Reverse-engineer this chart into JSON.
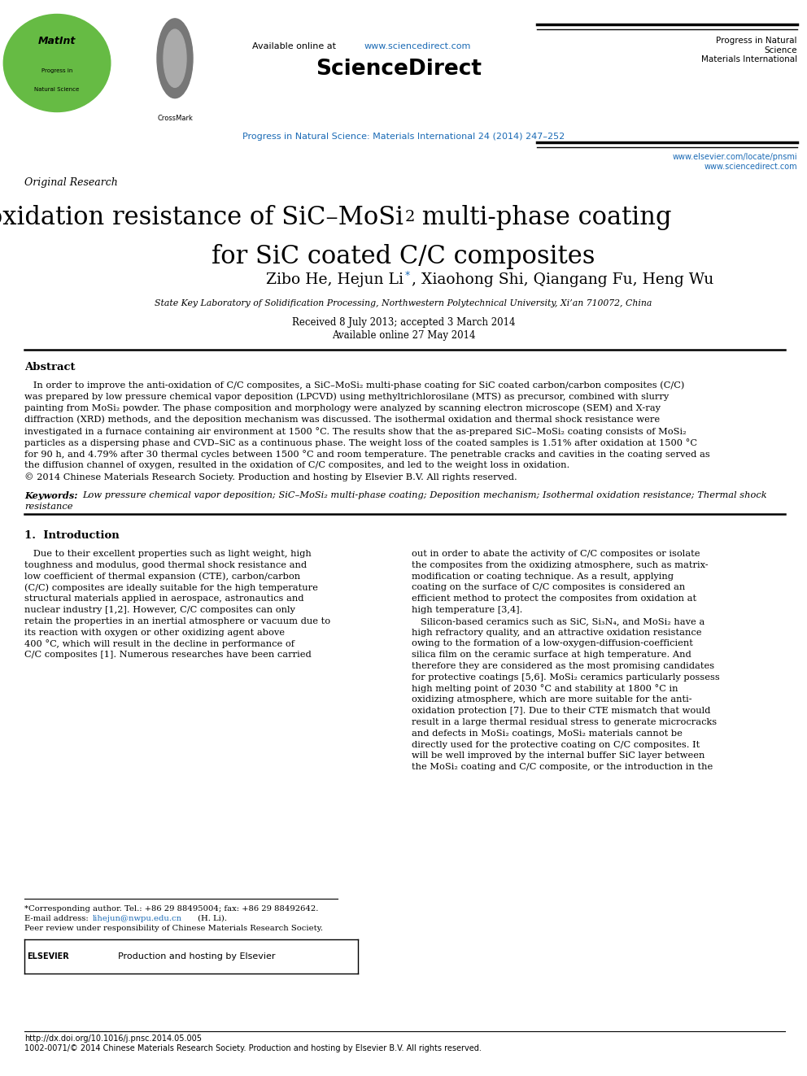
{
  "page_width": 9.92,
  "page_height": 13.23,
  "dpi": 100,
  "bg_color": "#ffffff",
  "color_link": "#1a6ab5",
  "color_black": "#000000",
  "header_available": "Available online at ",
  "header_url": "www.sciencedirect.com",
  "header_sciencedirect": "ScienceDirect",
  "header_journal_right": "Progress in Natural\nScience\nMaterials International",
  "header_journal_link": "Progress in Natural Science: Materials International 24 (2014) 247–252",
  "header_elsevier_url1": "www.elsevier.com/locate/pnsmi",
  "header_elsevier_url2": "www.sciencedirect.com",
  "article_type": "Original Research",
  "title_part1": "Microstructure and oxidation resistance of SiC–MoSi",
  "title_sub": "2",
  "title_part2": " multi-phase coating",
  "title_line2": "for SiC coated C/C composites",
  "authors_part1": "Zibo He, Hejun Li",
  "authors_star": "*",
  "authors_part2": ", Xiaohong Shi, Qiangang Fu, Heng Wu",
  "affiliation": "State Key Laboratory of Solidification Processing, Northwestern Polytechnical University, Xi’an 710072, China",
  "received": "Received 8 July 2013; accepted 3 March 2014",
  "available_online": "Available online 27 May 2014",
  "abstract_title": "Abstract",
  "abstract_body": "   In order to improve the anti-oxidation of C/C composites, a SiC–MoSi₂ multi-phase coating for SiC coated carbon/carbon composites (C/C) was prepared by low pressure chemical vapor deposition (LPCVD) using methyltrichlorosilane (MTS) as precursor, combined with slurry painting from MoSi₂ powder. The phase composition and morphology were analyzed by scanning electron microscope (SEM) and X-ray diffraction (XRD) methods, and the deposition mechanism was discussed. The isothermal oxidation and thermal shock resistance were investigated in a furnace containing air environment at 1500 °C. The results show that the as-prepared SiC–MoSi₂ coating consists of MoSi₂ particles as a dispersing phase and CVD–SiC as a continuous phase. The weight loss of the coated samples is 1.51% after oxidation at 1500 °C for 90 h, and 4.79% after 30 thermal cycles between 1500 °C and room temperature. The penetrable cracks and cavities in the coating served as the diffusion channel of oxygen, resulted in the oxidation of C/C composites, and led to the weight loss in oxidation.",
  "abstract_copyright": "© 2014 Chinese Materials Research Society. Production and hosting by Elsevier B.V. All rights reserved.",
  "keywords_label": "Keywords:",
  "keywords_body": " Low pressure chemical vapor deposition; SiC–MoSi₂ multi-phase coating; Deposition mechanism; Isothermal oxidation resistance; Thermal shock resistance",
  "section1_title": "1.  Introduction",
  "intro_left_lines": [
    "   Due to their excellent properties such as light weight, high",
    "toughness and modulus, good thermal shock resistance and",
    "low coefficient of thermal expansion (CTE), carbon/carbon",
    "(C/C) composites are ideally suitable for the high temperature",
    "structural materials applied in aerospace, astronautics and",
    "nuclear industry [1,2]. However, C/C composites can only",
    "retain the properties in an inertial atmosphere or vacuum due to",
    "its reaction with oxygen or other oxidizing agent above",
    "400 °C, which will result in the decline in performance of",
    "C/C composites [1]. Numerous researches have been carried"
  ],
  "intro_right_lines": [
    "out in order to abate the activity of C/C composites or isolate",
    "the composites from the oxidizing atmosphere, such as matrix-",
    "modification or coating technique. As a result, applying",
    "coating on the surface of C/C composites is considered an",
    "efficient method to protect the composites from oxidation at",
    "high temperature [3,4].",
    "   Silicon-based ceramics such as SiC, Si₃N₄, and MoSi₂ have a",
    "high refractory quality, and an attractive oxidation resistance",
    "owing to the formation of a low-oxygen-diffusion-coefficient",
    "silica film on the ceramic surface at high temperature. And",
    "therefore they are considered as the most promising candidates",
    "for protective coatings [5,6]. MoSi₂ ceramics particularly possess",
    "high melting point of 2030 °C and stability at 1800 °C in",
    "oxidizing atmosphere, which are more suitable for the anti-",
    "oxidation protection [7]. Due to their CTE mismatch that would",
    "result in a large thermal residual stress to generate microcracks",
    "and defects in MoSi₂ coatings, MoSi₂ materials cannot be",
    "directly used for the protective coating on C/C composites. It",
    "will be well improved by the internal buffer SiC layer between",
    "the MoSi₂ coating and C/C composite, or the introduction in the"
  ],
  "footnote_corr": "*Corresponding author. Tel.: +86 29 88495004; fax: +86 29 88492642.",
  "footnote_email_pre": "E-mail address: ",
  "footnote_email": "lihejun@nwpu.edu.cn",
  "footnote_email_post": " (H. Li).",
  "footnote_peer": "Peer review under responsibility of Chinese Materials Research Society.",
  "elsevier_box_text": "Production and hosting by Elsevier",
  "doi": "http://dx.doi.org/10.1016/j.pnsc.2014.05.005",
  "issn": "1002-0071/© 2014 Chinese Materials Research Society. Production and hosting by Elsevier B.V. All rights reserved."
}
